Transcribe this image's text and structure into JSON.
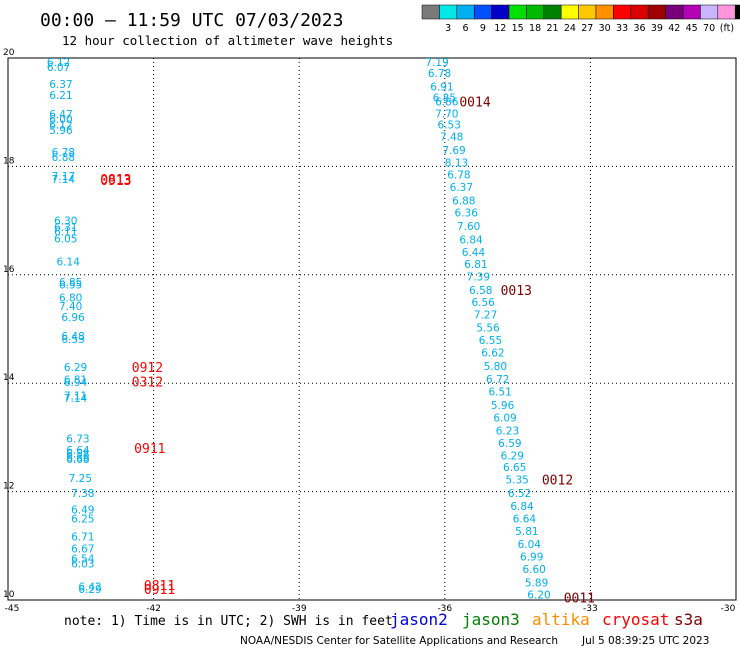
{
  "header": {
    "title": "00:00 – 11:59 UTC 07/03/2023",
    "subtitle": "12 hour collection of altimeter wave heights"
  },
  "color_scale": {
    "unit": "(ft)",
    "bins": [
      {
        "label": "",
        "color": "#7a7a7a"
      },
      {
        "label": "3",
        "color": "#00e8e8"
      },
      {
        "label": "6",
        "color": "#00b0f0"
      },
      {
        "label": "9",
        "color": "#0050ff"
      },
      {
        "label": "12",
        "color": "#0000c8"
      },
      {
        "label": "15",
        "color": "#00e000"
      },
      {
        "label": "18",
        "color": "#00b800"
      },
      {
        "label": "21",
        "color": "#008000"
      },
      {
        "label": "24",
        "color": "#ffff00"
      },
      {
        "label": "27",
        "color": "#ffc800"
      },
      {
        "label": "30",
        "color": "#ff9000"
      },
      {
        "label": "33",
        "color": "#ff0000"
      },
      {
        "label": "36",
        "color": "#d80000"
      },
      {
        "label": "39",
        "color": "#a00000"
      },
      {
        "label": "42",
        "color": "#780078"
      },
      {
        "label": "45",
        "color": "#b400b4"
      },
      {
        "label": "70",
        "color": "#c8b4ff"
      },
      {
        "label": "",
        "color": "#ff96dc"
      },
      {
        "label": "",
        "color": "#000000"
      }
    ]
  },
  "chart_data": {
    "type": "scatter",
    "title": "00:00 – 11:59 UTC 07/03/2023",
    "subtitle": "12 hour collection of altimeter wave heights",
    "xlim": [
      -45,
      -30
    ],
    "ylim": [
      10,
      20
    ],
    "x_ticks": [
      -45,
      -42,
      -39,
      -36,
      -33,
      -30
    ],
    "y_ticks": [
      10,
      12,
      14,
      16,
      18,
      20
    ],
    "grid": true,
    "label_color": "#00b0f0",
    "tracks": [
      {
        "name": "west track",
        "points": [
          {
            "x": -44.2,
            "y": 19.93,
            "v": "6.12"
          },
          {
            "x": -44.2,
            "y": 19.83,
            "v": "6.07"
          },
          {
            "x": -44.15,
            "y": 19.52,
            "v": "6.37"
          },
          {
            "x": -44.15,
            "y": 19.32,
            "v": "6.21"
          },
          {
            "x": -44.15,
            "y": 18.97,
            "v": "6.47"
          },
          {
            "x": -44.15,
            "y": 18.87,
            "v": "6.00"
          },
          {
            "x": -44.15,
            "y": 18.77,
            "v": "6.12"
          },
          {
            "x": -44.15,
            "y": 18.67,
            "v": "5.96"
          },
          {
            "x": -44.1,
            "y": 18.27,
            "v": "6.78"
          },
          {
            "x": -44.1,
            "y": 18.17,
            "v": "6.88"
          },
          {
            "x": -44.1,
            "y": 17.82,
            "v": "7.17"
          },
          {
            "x": -44.1,
            "y": 17.77,
            "v": "7.14"
          },
          {
            "x": -44.05,
            "y": 17.0,
            "v": "6.30"
          },
          {
            "x": -44.05,
            "y": 16.88,
            "v": "6.31"
          },
          {
            "x": -44.05,
            "y": 16.8,
            "v": "6.11"
          },
          {
            "x": -44.05,
            "y": 16.67,
            "v": "6.05"
          },
          {
            "x": -44.0,
            "y": 16.25,
            "v": "6.14"
          },
          {
            "x": -43.95,
            "y": 15.87,
            "v": "6.85"
          },
          {
            "x": -43.95,
            "y": 15.82,
            "v": "6.55"
          },
          {
            "x": -43.95,
            "y": 15.58,
            "v": "6.80"
          },
          {
            "x": -43.95,
            "y": 15.42,
            "v": "7.40"
          },
          {
            "x": -43.9,
            "y": 15.22,
            "v": "6.96"
          },
          {
            "x": -43.9,
            "y": 14.87,
            "v": "6.48"
          },
          {
            "x": -43.9,
            "y": 14.82,
            "v": "6.53"
          },
          {
            "x": -43.85,
            "y": 14.3,
            "v": "6.29"
          },
          {
            "x": -43.85,
            "y": 14.07,
            "v": "6.81"
          },
          {
            "x": -43.85,
            "y": 14.02,
            "v": "6.94"
          },
          {
            "x": -43.85,
            "y": 13.77,
            "v": "7.11"
          },
          {
            "x": -43.85,
            "y": 13.73,
            "v": "7.14"
          },
          {
            "x": -43.8,
            "y": 12.98,
            "v": "6.73"
          },
          {
            "x": -43.8,
            "y": 12.77,
            "v": "6.64"
          },
          {
            "x": -43.8,
            "y": 12.7,
            "v": "6.58"
          },
          {
            "x": -43.8,
            "y": 12.63,
            "v": "6.56"
          },
          {
            "x": -43.8,
            "y": 12.6,
            "v": "6.68"
          },
          {
            "x": -43.75,
            "y": 12.25,
            "v": "7.25"
          },
          {
            "x": -43.7,
            "y": 11.97,
            "v": "7.38"
          },
          {
            "x": -43.7,
            "y": 11.67,
            "v": "6.49"
          },
          {
            "x": -43.7,
            "y": 11.5,
            "v": "6.25"
          },
          {
            "x": -43.7,
            "y": 11.17,
            "v": "6.71"
          },
          {
            "x": -43.7,
            "y": 10.95,
            "v": "6.67"
          },
          {
            "x": -43.7,
            "y": 10.77,
            "v": "6.54"
          },
          {
            "x": -43.7,
            "y": 10.67,
            "v": "6.03"
          },
          {
            "x": -43.55,
            "y": 10.25,
            "v": "6.42"
          },
          {
            "x": -43.55,
            "y": 10.2,
            "v": "6.29"
          }
        ]
      },
      {
        "name": "east track",
        "points": [
          {
            "x": -36.4,
            "y": 19.93,
            "v": "7.19"
          },
          {
            "x": -36.35,
            "y": 19.72,
            "v": "6.78"
          },
          {
            "x": -36.3,
            "y": 19.47,
            "v": "6.91"
          },
          {
            "x": -36.25,
            "y": 19.27,
            "v": "6.85"
          },
          {
            "x": -36.2,
            "y": 19.2,
            "v": "6.86"
          },
          {
            "x": -36.2,
            "y": 18.98,
            "v": "7.70"
          },
          {
            "x": -36.15,
            "y": 18.77,
            "v": "6.53"
          },
          {
            "x": -36.1,
            "y": 18.55,
            "v": "7.48"
          },
          {
            "x": -36.05,
            "y": 18.3,
            "v": "7.69"
          },
          {
            "x": -36.0,
            "y": 18.07,
            "v": "8.13"
          },
          {
            "x": -35.95,
            "y": 17.85,
            "v": "6.78"
          },
          {
            "x": -35.9,
            "y": 17.62,
            "v": "6.37"
          },
          {
            "x": -35.85,
            "y": 17.37,
            "v": "6.88"
          },
          {
            "x": -35.8,
            "y": 17.15,
            "v": "6.36"
          },
          {
            "x": -35.75,
            "y": 16.9,
            "v": "7.60"
          },
          {
            "x": -35.7,
            "y": 16.65,
            "v": "6.84"
          },
          {
            "x": -35.65,
            "y": 16.42,
            "v": "6.44"
          },
          {
            "x": -35.6,
            "y": 16.2,
            "v": "6.81"
          },
          {
            "x": -35.55,
            "y": 15.97,
            "v": "7.39"
          },
          {
            "x": -35.5,
            "y": 15.72,
            "v": "6.58"
          },
          {
            "x": -35.45,
            "y": 15.5,
            "v": "6.56"
          },
          {
            "x": -35.4,
            "y": 15.27,
            "v": "7.27"
          },
          {
            "x": -35.35,
            "y": 15.03,
            "v": "5.56"
          },
          {
            "x": -35.3,
            "y": 14.8,
            "v": "6.55"
          },
          {
            "x": -35.25,
            "y": 14.57,
            "v": "6.62"
          },
          {
            "x": -35.2,
            "y": 14.32,
            "v": "5.80"
          },
          {
            "x": -35.15,
            "y": 14.08,
            "v": "6.72"
          },
          {
            "x": -35.1,
            "y": 13.85,
            "v": "6.51"
          },
          {
            "x": -35.05,
            "y": 13.6,
            "v": "5.96"
          },
          {
            "x": -35.0,
            "y": 13.37,
            "v": "6.09"
          },
          {
            "x": -34.95,
            "y": 13.13,
            "v": "6.23"
          },
          {
            "x": -34.9,
            "y": 12.9,
            "v": "6.59"
          },
          {
            "x": -34.85,
            "y": 12.67,
            "v": "6.29"
          },
          {
            "x": -34.8,
            "y": 12.45,
            "v": "6.65"
          },
          {
            "x": -34.75,
            "y": 12.22,
            "v": "5.35"
          },
          {
            "x": -34.7,
            "y": 11.97,
            "v": "6.52"
          },
          {
            "x": -34.65,
            "y": 11.73,
            "v": "6.84"
          },
          {
            "x": -34.6,
            "y": 11.5,
            "v": "6.64"
          },
          {
            "x": -34.55,
            "y": 11.27,
            "v": "5.81"
          },
          {
            "x": -34.5,
            "y": 11.03,
            "v": "6.04"
          },
          {
            "x": -34.45,
            "y": 10.8,
            "v": "6.99"
          },
          {
            "x": -34.4,
            "y": 10.57,
            "v": "6.60"
          },
          {
            "x": -34.35,
            "y": 10.32,
            "v": "5.89"
          },
          {
            "x": -34.3,
            "y": 10.1,
            "v": "6.20"
          }
        ]
      }
    ],
    "time_marks": [
      {
        "x": -35.7,
        "y": 19.2,
        "v": "0014",
        "color": "#800000"
      },
      {
        "x": -34.85,
        "y": 15.72,
        "v": "0013",
        "color": "#800000"
      },
      {
        "x": -34.0,
        "y": 12.22,
        "v": "0012",
        "color": "#800000"
      },
      {
        "x": -33.55,
        "y": 10.05,
        "v": "0011",
        "color": "#800000"
      },
      {
        "x": -43.1,
        "y": 17.77,
        "v": "0813",
        "color": "#ff0000"
      },
      {
        "x": -43.1,
        "y": 17.75,
        "v": "0913",
        "color": "#ff0000"
      },
      {
        "x": -42.45,
        "y": 14.3,
        "v": "0912",
        "color": "#ff0000"
      },
      {
        "x": -42.45,
        "y": 14.03,
        "v": "0312",
        "color": "#ff0000"
      },
      {
        "x": -42.4,
        "y": 12.8,
        "v": "0911",
        "color": "#ff0000"
      },
      {
        "x": -42.2,
        "y": 10.28,
        "v": "0811",
        "color": "#ff0000"
      },
      {
        "x": -42.2,
        "y": 10.2,
        "v": "0911",
        "color": "#ff0000"
      }
    ]
  },
  "footer": {
    "note": "note: 1) Time is in UTC; 2) SWH is in feet",
    "satellites": [
      {
        "name": "jason2",
        "color": "#0000e0"
      },
      {
        "name": "jason3",
        "color": "#008000"
      },
      {
        "name": "altika",
        "color": "#ff8c00"
      },
      {
        "name": "cryosat",
        "color": "#ff0000"
      },
      {
        "name": "s3a",
        "color": "#800000"
      }
    ],
    "credit": "NOAA/NESDIS Center for Satellite Applications and Research",
    "generated": "Jul  5 08:39:25 UTC 2023"
  }
}
